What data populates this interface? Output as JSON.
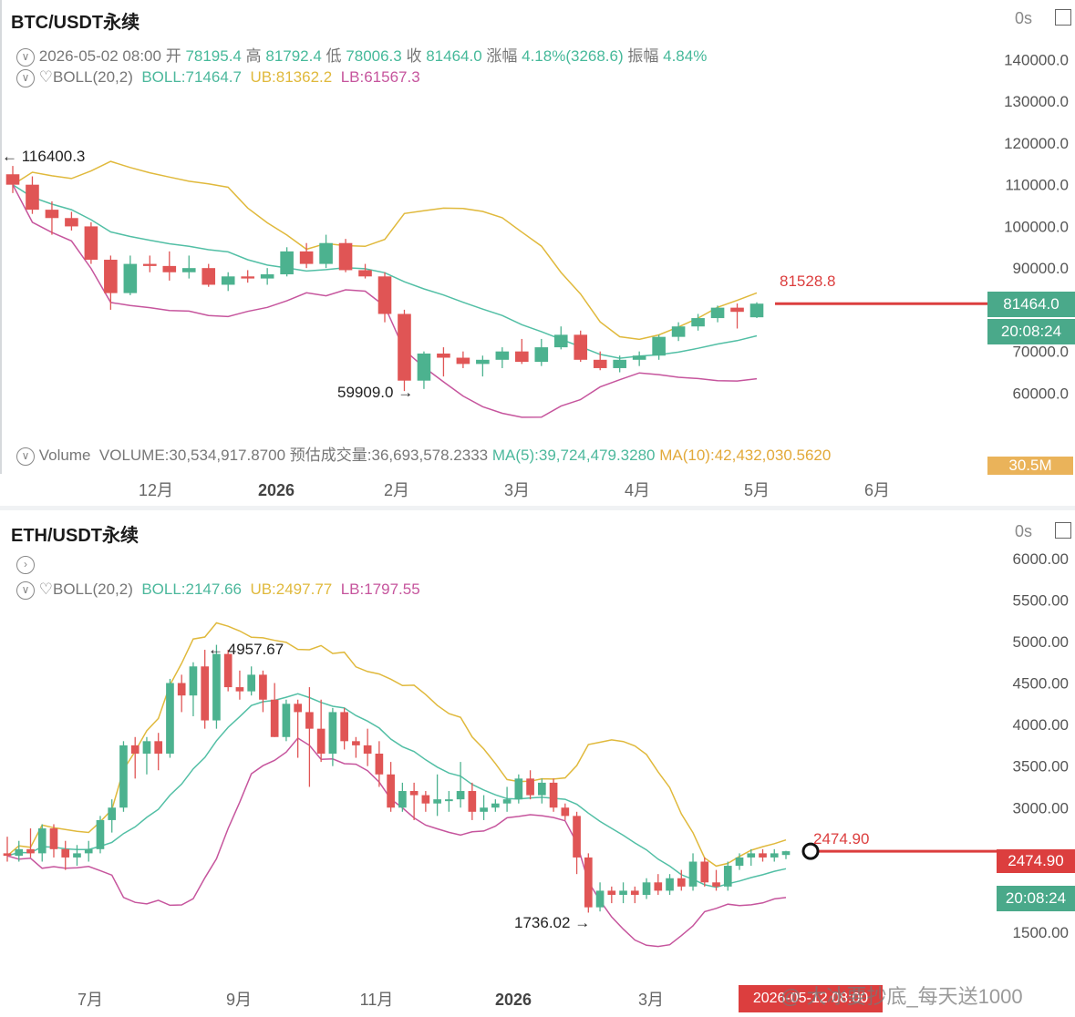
{
  "colors": {
    "up": "#4cb28f",
    "down": "#e05555",
    "boll_mid": "#52bfa5",
    "boll_ub": "#e0b93c",
    "boll_lb": "#c6559d",
    "price_line": "#dc3e3e",
    "tag_green": "#4aa98a",
    "tag_red": "#dc3e3e",
    "tag_orange": "#eab35a"
  },
  "btc": {
    "title": "BTC/USDT永续",
    "interval": "0s",
    "ohlc": {
      "date": "2026-05-02 08:00",
      "open_label": "开",
      "open": "78195.4",
      "high_label": "高",
      "high": "81792.4",
      "low_label": "低",
      "low": "78006.3",
      "close_label": "收",
      "close": "81464.0",
      "change_label": "涨幅",
      "change": "4.18%(3268.6)",
      "amp_label": "振幅",
      "amp": "4.84%"
    },
    "boll": {
      "label": "BOLL(20,2)",
      "mid": "BOLL:71464.7",
      "ub": "UB:81362.2",
      "lb": "LB:61567.3"
    },
    "volume": {
      "label": "Volume",
      "volume": "VOLUME:30,534,917.8700",
      "est": "预估成交量:36,693,578.2333",
      "ma5": "MA(5):39,724,479.3280",
      "ma10": "MA(10):42,432,030.5620",
      "tag": "30.5M"
    },
    "high_marker": "116400.3",
    "low_marker": "59909.0",
    "last_price_label": "81528.8",
    "price_tag": "81464.0",
    "countdown": "20:08:24",
    "months": [
      "12月",
      "2026",
      "2月",
      "3月",
      "4月",
      "5月",
      "6月"
    ]
  },
  "eth": {
    "title": "ETH/USDT永续",
    "interval": "0s",
    "boll": {
      "label": "BOLL(20,2)",
      "mid": "BOLL:2147.66",
      "ub": "UB:2497.77",
      "lb": "LB:1797.55"
    },
    "high_marker": "4957.67",
    "low_marker": "1736.02",
    "last_price_label": "2474.90",
    "price_tag": "2474.90",
    "countdown": "20:08:24",
    "months": [
      "7月",
      "9月",
      "11月",
      "2026",
      "3月"
    ],
    "date_tag": "2026-05-12 08:00"
  },
  "watermark": "@ 大冰要抄底_每天送1000",
  "chart_data": [
    {
      "type": "candlestick",
      "title": "BTC/USDT永续",
      "x": [
        "12月",
        "2026",
        "2月",
        "3月",
        "4月",
        "5月",
        "6月"
      ],
      "y_ticks": [
        140000,
        130000,
        120000,
        110000,
        100000,
        90000,
        70000,
        60000
      ],
      "ylim": [
        52000,
        146000
      ],
      "candles": [
        [
          112500,
          114500,
          108000,
          110000
        ],
        [
          110000,
          112000,
          103000,
          104000
        ],
        [
          104000,
          106000,
          98000,
          102000
        ],
        [
          102000,
          103500,
          99000,
          100000
        ],
        [
          100000,
          101000,
          91000,
          92000
        ],
        [
          92000,
          93000,
          80000,
          84000
        ],
        [
          84000,
          93000,
          83500,
          91000
        ],
        [
          91000,
          93000,
          89000,
          90500
        ],
        [
          90500,
          94000,
          87000,
          89000
        ],
        [
          89000,
          93000,
          87500,
          90000
        ],
        [
          90000,
          91000,
          85500,
          86000
        ],
        [
          86000,
          89000,
          84500,
          88000
        ],
        [
          88000,
          89500,
          86500,
          87500
        ],
        [
          87500,
          90000,
          86000,
          88500
        ],
        [
          88500,
          95000,
          88000,
          94000
        ],
        [
          94000,
          96000,
          90000,
          91000
        ],
        [
          91000,
          98000,
          90000,
          96000
        ],
        [
          96000,
          97000,
          89000,
          89500
        ],
        [
          89500,
          91000,
          87500,
          88000
        ],
        [
          88000,
          89000,
          77000,
          79000
        ],
        [
          79000,
          80000,
          60500,
          63000
        ],
        [
          63000,
          70000,
          61000,
          69500
        ],
        [
          69500,
          71000,
          64000,
          68500
        ],
        [
          68500,
          70000,
          66000,
          67000
        ],
        [
          67000,
          69000,
          64000,
          68000
        ],
        [
          68000,
          71000,
          66000,
          70000
        ],
        [
          70000,
          73000,
          67000,
          67500
        ],
        [
          67500,
          73000,
          66500,
          71000
        ],
        [
          71000,
          76000,
          70500,
          74000
        ],
        [
          74000,
          75000,
          67500,
          68000
        ],
        [
          68000,
          70000,
          65500,
          66000
        ],
        [
          66000,
          69000,
          65000,
          68000
        ],
        [
          68000,
          70000,
          66500,
          69000
        ],
        [
          69000,
          74000,
          68000,
          73500
        ],
        [
          73500,
          77000,
          72500,
          76000
        ],
        [
          76000,
          79000,
          75000,
          78000
        ],
        [
          78000,
          81000,
          77000,
          80500
        ],
        [
          80500,
          81500,
          75500,
          79500
        ],
        [
          78195.4,
          81792.4,
          78006.3,
          81464.0
        ]
      ],
      "last_price": 81464.0
    },
    {
      "type": "candlestick",
      "title": "ETH/USDT永续",
      "x": [
        "7月",
        "9月",
        "11月",
        "2026",
        "3月"
      ],
      "y_ticks": [
        6000,
        5500,
        5000,
        4500,
        4000,
        3500,
        3000,
        1500
      ],
      "ylim": [
        1050,
        6250
      ],
      "candles": [
        [
          2450,
          2650,
          2350,
          2420
        ],
        [
          2420,
          2600,
          2350,
          2500
        ],
        [
          2500,
          2750,
          2400,
          2450
        ],
        [
          2450,
          2800,
          2350,
          2750
        ],
        [
          2750,
          2800,
          2400,
          2500
        ],
        [
          2500,
          2600,
          2250,
          2400
        ],
        [
          2400,
          2550,
          2300,
          2450
        ],
        [
          2450,
          2600,
          2350,
          2500
        ],
        [
          2500,
          2900,
          2450,
          2850
        ],
        [
          2850,
          3100,
          2700,
          3000
        ],
        [
          3000,
          3800,
          2950,
          3750
        ],
        [
          3750,
          3850,
          3350,
          3650
        ],
        [
          3650,
          3850,
          3400,
          3800
        ],
        [
          3800,
          3900,
          3450,
          3650
        ],
        [
          3650,
          4550,
          3600,
          4500
        ],
        [
          4500,
          4600,
          4150,
          4350
        ],
        [
          4350,
          4750,
          4100,
          4700
        ],
        [
          4700,
          4900,
          3950,
          4050
        ],
        [
          4050,
          4960,
          3950,
          4850
        ],
        [
          4850,
          4900,
          4400,
          4450
        ],
        [
          4450,
          4650,
          4300,
          4400
        ],
        [
          4400,
          4700,
          4350,
          4600
        ],
        [
          4600,
          4650,
          4150,
          4300
        ],
        [
          4300,
          4500,
          3850,
          3850
        ],
        [
          3850,
          4300,
          3800,
          4250
        ],
        [
          4250,
          4300,
          3600,
          4150
        ],
        [
          4150,
          4450,
          3250,
          3950
        ],
        [
          3950,
          4300,
          3550,
          3650
        ],
        [
          3650,
          4200,
          3500,
          4150
        ],
        [
          4150,
          4200,
          3700,
          3800
        ],
        [
          3800,
          3850,
          3600,
          3750
        ],
        [
          3750,
          3950,
          3500,
          3650
        ],
        [
          3650,
          3800,
          3250,
          3400
        ],
        [
          3400,
          3550,
          2950,
          3000
        ],
        [
          3000,
          3300,
          2950,
          3200
        ],
        [
          3200,
          3300,
          2850,
          3150
        ],
        [
          3150,
          3200,
          2950,
          3050
        ],
        [
          3050,
          3400,
          2900,
          3100
        ],
        [
          3100,
          3200,
          2950,
          3100
        ],
        [
          3100,
          3550,
          3000,
          3200
        ],
        [
          3200,
          3300,
          2850,
          2950
        ],
        [
          2950,
          3150,
          2850,
          3000
        ],
        [
          3000,
          3100,
          2950,
          3050
        ],
        [
          3050,
          3250,
          2950,
          3100
        ],
        [
          3100,
          3400,
          3050,
          3350
        ],
        [
          3350,
          3450,
          3100,
          3150
        ],
        [
          3150,
          3350,
          3050,
          3300
        ],
        [
          3300,
          3350,
          2950,
          3000
        ],
        [
          3000,
          3050,
          2850,
          2900
        ],
        [
          2900,
          2950,
          2200,
          2400
        ],
        [
          2400,
          2450,
          1736,
          1800
        ],
        [
          1800,
          2100,
          1750,
          2000
        ],
        [
          2000,
          2050,
          1850,
          1950
        ],
        [
          1950,
          2100,
          1850,
          2000
        ],
        [
          2000,
          2050,
          1850,
          1950
        ],
        [
          1950,
          2150,
          1900,
          2100
        ],
        [
          2100,
          2200,
          1950,
          2000
        ],
        [
          2000,
          2200,
          1950,
          2150
        ],
        [
          2150,
          2250,
          2000,
          2050
        ],
        [
          2050,
          2450,
          2000,
          2350
        ],
        [
          2350,
          2400,
          2050,
          2100
        ],
        [
          2100,
          2250,
          2000,
          2050
        ],
        [
          2050,
          2350,
          2000,
          2300
        ],
        [
          2300,
          2450,
          2250,
          2400
        ],
        [
          2400,
          2500,
          2300,
          2450
        ],
        [
          2450,
          2500,
          2350,
          2400
        ],
        [
          2400,
          2500,
          2350,
          2450
        ],
        [
          2430,
          2480,
          2380,
          2474.9
        ]
      ],
      "last_price": 2474.9
    }
  ]
}
